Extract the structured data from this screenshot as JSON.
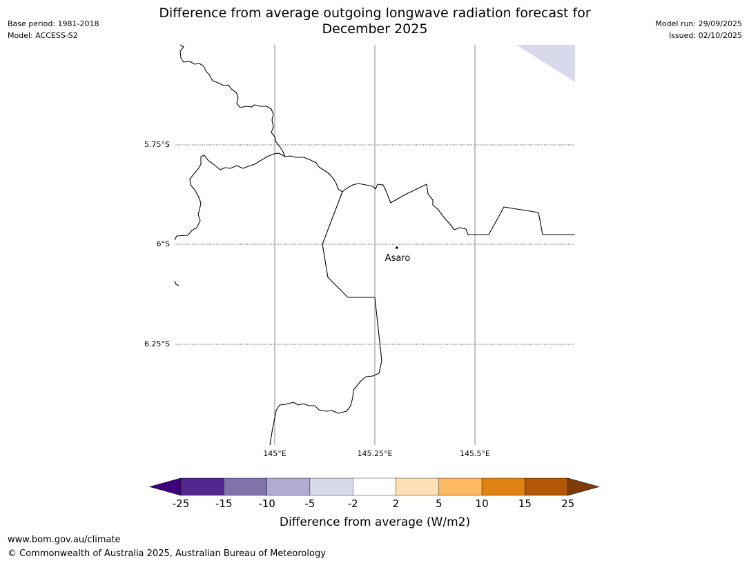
{
  "header": {
    "title_line1": "Difference from average outgoing longwave radiation forecast for",
    "title_line2": "December 2025",
    "base_period": "Base period: 1981-2018",
    "model": "Model: ACCESS-S2",
    "model_run": "Model run: 29/09/2025",
    "issued": "Issued: 02/10/2025"
  },
  "map": {
    "lat_labels": [
      "5.75°S",
      "6°S",
      "6.25°S"
    ],
    "lon_labels": [
      "145°E",
      "145.25°E",
      "145.5°E"
    ],
    "place_label": "Asaro"
  },
  "legend": {
    "title": "Difference from average (W/m2)",
    "ticks": [
      "-25",
      "-15",
      "-10",
      "-5",
      "-2",
      "2",
      "5",
      "10",
      "15",
      "25"
    ],
    "colors": [
      "#3f007d",
      "#54278f",
      "#8073ac",
      "#b2abd2",
      "#d8daeb",
      "#ffffff",
      "#fee0b6",
      "#fdb863",
      "#e08214",
      "#b35806",
      "#7f3b08"
    ]
  },
  "footer": {
    "url": "www.bom.gov.au/climate",
    "copyright": "© Commonwealth of Australia 2025, Australian Bureau of Meteorology"
  }
}
